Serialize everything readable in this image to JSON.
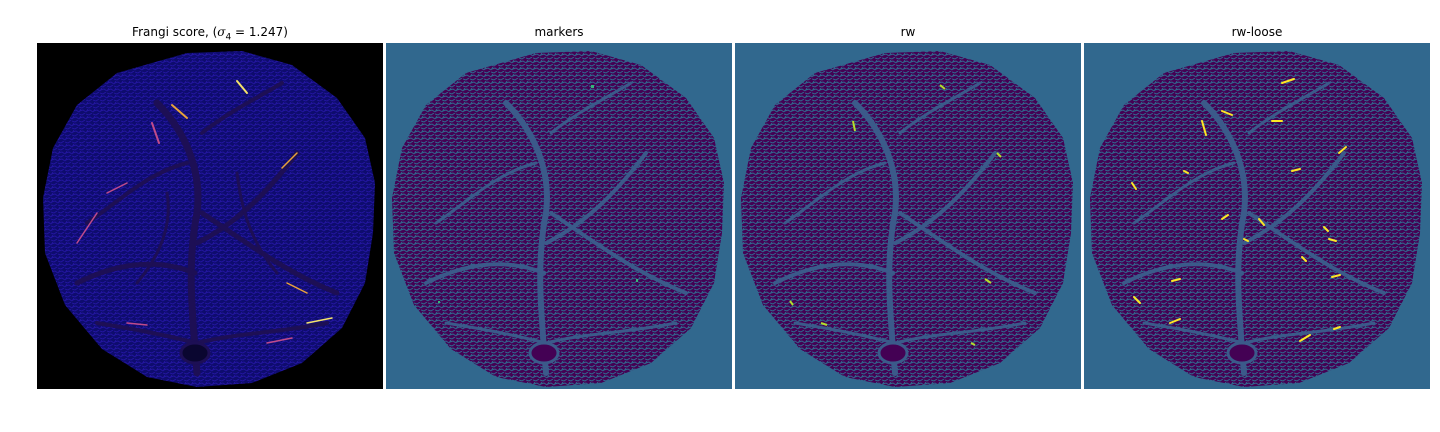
{
  "panels": [
    {
      "id": "frangi",
      "title_prefix": "Frangi score, (",
      "title_symbol": "σ",
      "title_subscript": "4",
      "title_suffix": " = 1.247)",
      "colormap": "plasma",
      "colors": {
        "background": "#000000",
        "tissue": "#11117a",
        "vessel": "#2a0f8c",
        "highlight_warm": "#e8a23a",
        "highlight_hot": "#f5e36a",
        "highlight_pink": "#c04b8a"
      }
    },
    {
      "id": "markers",
      "title": "markers",
      "colormap": "viridis",
      "colors": {
        "background": "#31688e",
        "tissue": "#440154",
        "vessel": "#31688e",
        "highlight": "#35b779"
      }
    },
    {
      "id": "rw",
      "title": "rw",
      "colormap": "viridis",
      "colors": {
        "background": "#31688e",
        "tissue": "#440154",
        "vessel": "#31688e",
        "highlight": "#b5de2b"
      }
    },
    {
      "id": "rw-loose",
      "title": "rw-loose",
      "colormap": "viridis",
      "colors": {
        "background": "#31688e",
        "tissue": "#440154",
        "vessel": "#31688e",
        "highlight": "#fde725"
      }
    }
  ]
}
